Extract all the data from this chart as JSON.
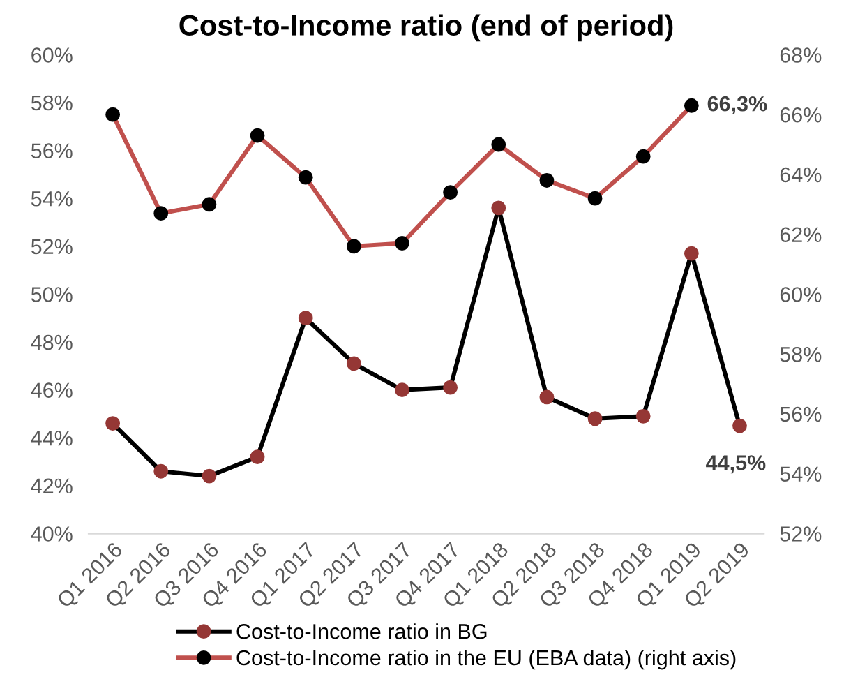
{
  "chart_data": {
    "type": "line",
    "title": "Cost-to-Income ratio (end of period)",
    "categories": [
      "Q1 2016",
      "Q2 2016",
      "Q3 2016",
      "Q4 2016",
      "Q1 2017",
      "Q2 2017",
      "Q3 2017",
      "Q4 2017",
      "Q1 2018",
      "Q2 2018",
      "Q3 2018",
      "Q4 2018",
      "Q1 2019",
      "Q2 2019"
    ],
    "series": [
      {
        "name": "Cost-to-Income ratio in BG",
        "color": "#000000",
        "colors": [
          "#953735",
          "#953735",
          "#953735",
          "#953735",
          "#953735",
          "#953735",
          "#953735",
          "#953735",
          "#953735",
          "#953735",
          "#953735",
          "#953735",
          "#953735",
          "#953735"
        ],
        "values": [
          44.6,
          42.6,
          42.4,
          43.2,
          49.0,
          47.1,
          46.0,
          46.1,
          53.6,
          45.7,
          44.8,
          44.9,
          51.7,
          44.5
        ],
        "value_labels": [
          null,
          null,
          null,
          null,
          null,
          null,
          null,
          null,
          null,
          null,
          null,
          null,
          null,
          "44,5%"
        ]
      },
      {
        "name": "Cost-to-Income ratio in the EU (EBA data) (right axis)",
        "axis": "y2",
        "color": "#c0504d",
        "colors": [
          "#000000",
          "#000000",
          "#000000",
          "#000000",
          "#000000",
          "#000000",
          "#000000",
          "#000000",
          "#000000",
          "#000000",
          "#000000",
          "#000000",
          "#000000",
          null
        ],
        "values": [
          66.0,
          62.7,
          63.0,
          65.3,
          63.9,
          61.6,
          61.7,
          63.4,
          65.0,
          63.8,
          63.2,
          64.6,
          66.3,
          null
        ],
        "value_labels": [
          null,
          null,
          null,
          null,
          null,
          null,
          null,
          null,
          null,
          null,
          null,
          null,
          "66,3%",
          null
        ]
      }
    ],
    "ylim": [
      40,
      60
    ],
    "yticks": [
      {
        "value": 40,
        "label": "40%"
      },
      {
        "value": 42,
        "label": "42%"
      },
      {
        "value": 44,
        "label": "44%"
      },
      {
        "value": 46,
        "label": "46%"
      },
      {
        "value": 48,
        "label": "48%"
      },
      {
        "value": 50,
        "label": "50%"
      },
      {
        "value": 52,
        "label": "52%"
      },
      {
        "value": 54,
        "label": "54%"
      },
      {
        "value": 56,
        "label": "56%"
      },
      {
        "value": 58,
        "label": "58%"
      },
      {
        "value": 60,
        "label": "60%"
      }
    ],
    "y2lim": [
      52,
      68
    ],
    "y2ticks": [
      {
        "value": 52,
        "label": "52%"
      },
      {
        "value": 54,
        "label": "54%"
      },
      {
        "value": 56,
        "label": "56%"
      },
      {
        "value": 58,
        "label": "58%"
      },
      {
        "value": 60,
        "label": "60%"
      },
      {
        "value": 62,
        "label": "62%"
      },
      {
        "value": 64,
        "label": "64%"
      },
      {
        "value": 66,
        "label": "66%"
      },
      {
        "value": 68,
        "label": "68%"
      }
    ],
    "marker": "circle",
    "line_style": "solid",
    "grid": false,
    "legend": "bottom"
  }
}
